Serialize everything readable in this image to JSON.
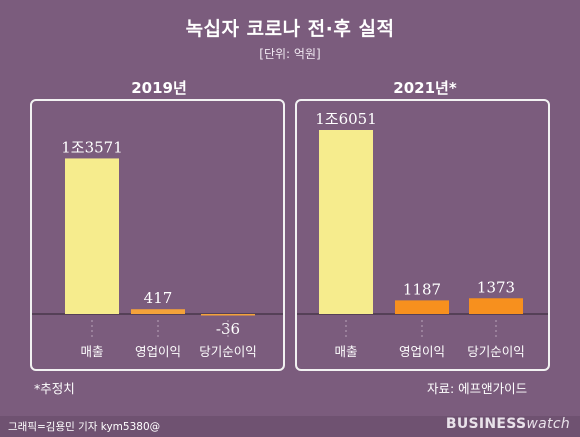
{
  "header": {
    "title": "녹십자 코로나 전·후 실적",
    "unit": "[단위: 억원]"
  },
  "notes": {
    "estimate": "*추정치",
    "source": "자료: 에프앤가이드"
  },
  "footer": {
    "credit": "그래픽=김용민 기자 kym5380@",
    "brand_bold": "BUSINESS",
    "brand_light": "watch"
  },
  "colors": {
    "background": "#7b5c7d",
    "bar_2019": "#f6ec8d",
    "bar_2021": "#f7901e",
    "bar_op_2019": "#f4a23a"
  },
  "chart_data": [
    {
      "type": "bar",
      "title": "2019년",
      "categories": [
        "매출",
        "영업이익",
        "당기순이익"
      ],
      "values": [
        13571,
        417,
        -36
      ],
      "value_labels": [
        "1조3571",
        "417",
        "-36"
      ]
    },
    {
      "type": "bar",
      "title": "2021년*",
      "categories": [
        "매출",
        "영업이익",
        "당기순이익"
      ],
      "values": [
        16051,
        1187,
        1373
      ],
      "value_labels": [
        "1조6051",
        "1187",
        "1373"
      ]
    }
  ]
}
